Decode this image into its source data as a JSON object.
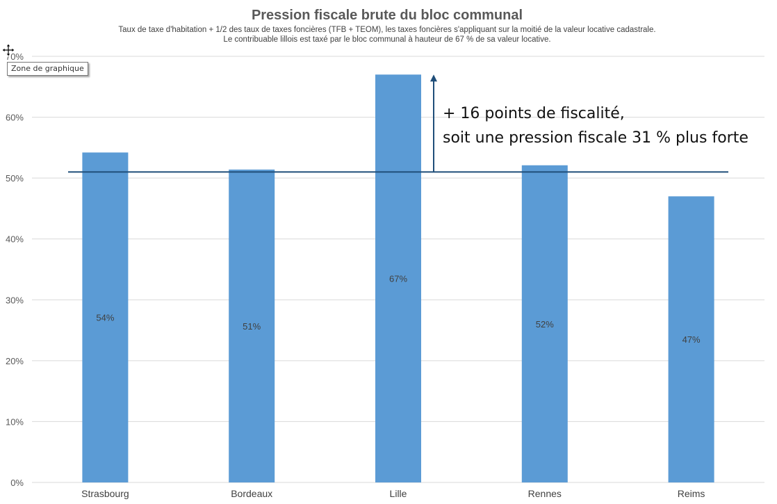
{
  "tooltip": {
    "label": "Zone de graphique"
  },
  "annotation": {
    "line1": "+ 16 points de fiscalité,",
    "line2": "soit une pression fiscale 31 % plus forte"
  },
  "colors": {
    "bar": "#5B9BD5",
    "reference_line": "#1F4E79",
    "grid": "#D9D9D9"
  },
  "icons": {
    "cursor": "move-cursor-icon"
  },
  "chart_data": {
    "type": "bar",
    "title": "Pression fiscale brute du bloc communal",
    "subtitle": [
      "Taux de taxe d'habitation + 1/2 des taux de taxes foncières (TFB + TEOM), les taxes foncières s'appliquant sur la moitié de la valeur locative cadastrale.",
      "Le contribuable lillois est taxé par le bloc communal à hauteur de 67 % de sa valeur locative."
    ],
    "categories": [
      "Strasbourg",
      "Bordeaux",
      "Lille",
      "Rennes",
      "Reims"
    ],
    "values": [
      54.2,
      51.4,
      67,
      52.1,
      47
    ],
    "data_labels": [
      "54%",
      "51%",
      "67%",
      "52%",
      "47%"
    ],
    "ylim": [
      0,
      70
    ],
    "yticks": [
      0,
      10,
      20,
      30,
      40,
      50,
      60,
      70
    ],
    "ytick_labels": [
      "0%",
      "10%",
      "20%",
      "30%",
      "40%",
      "50%",
      "60%",
      "70%"
    ],
    "reference_value": 51,
    "grid": true,
    "legend": "none",
    "xlabel": "",
    "ylabel": ""
  }
}
